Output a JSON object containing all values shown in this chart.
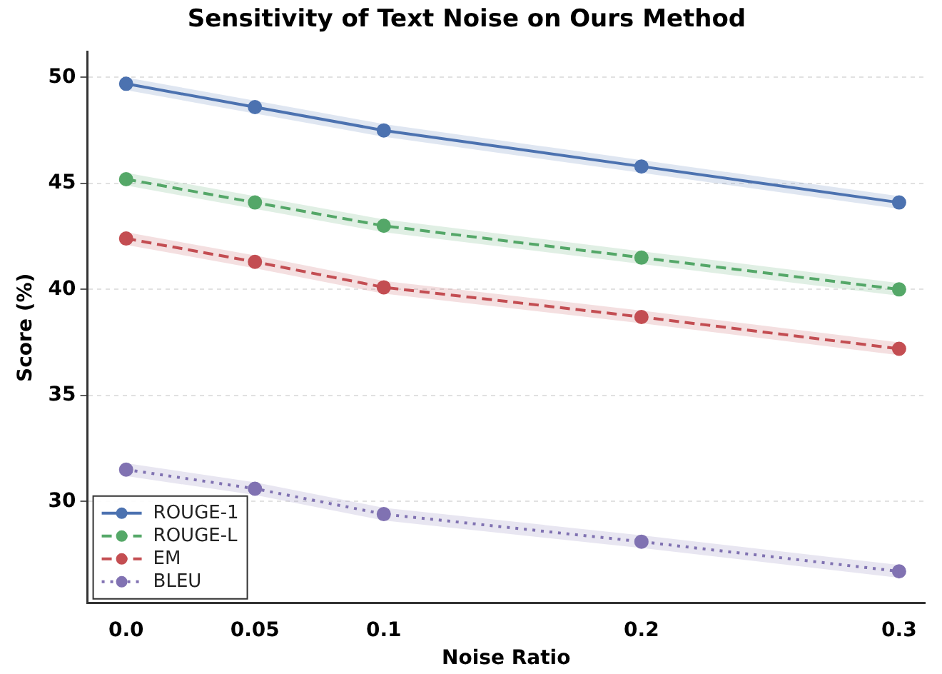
{
  "chart_data": {
    "type": "line",
    "title": "Sensitivity of Text Noise on Ours Method",
    "xlabel": "Noise Ratio",
    "ylabel": "Score (%)",
    "x": [
      0,
      0.05,
      0.1,
      0.2,
      0.3
    ],
    "series": [
      {
        "name": "ROUGE-1",
        "color": "#4c72b0",
        "line_style": "solid",
        "values": [
          49.7,
          48.6,
          47.5,
          45.8,
          44.1
        ],
        "lower": [
          49.4,
          48.3,
          47.2,
          45.5,
          43.8
        ],
        "upper": [
          50.0,
          48.9,
          47.8,
          46.1,
          44.4
        ]
      },
      {
        "name": "ROUGE-L",
        "color": "#55a868",
        "line_style": "dashed",
        "values": [
          45.2,
          44.1,
          43.0,
          41.5,
          40.0
        ],
        "lower": [
          44.9,
          43.8,
          42.7,
          41.2,
          39.7
        ],
        "upper": [
          45.5,
          44.4,
          43.3,
          41.8,
          40.3
        ]
      },
      {
        "name": "EM",
        "color": "#c44e52",
        "line_style": "dashed",
        "values": [
          42.4,
          41.3,
          40.1,
          38.7,
          37.2
        ],
        "lower": [
          42.1,
          41.0,
          39.8,
          38.4,
          36.9
        ],
        "upper": [
          42.7,
          41.6,
          40.4,
          39.0,
          37.5
        ]
      },
      {
        "name": "BLEU",
        "color": "#8172b2",
        "line_style": "dotted",
        "values": [
          31.5,
          30.6,
          29.4,
          28.1,
          26.7
        ],
        "lower": [
          31.2,
          30.3,
          29.1,
          27.8,
          26.4
        ],
        "upper": [
          31.8,
          30.9,
          29.7,
          28.4,
          27.0
        ]
      }
    ],
    "xlim": [
      -0.015,
      0.31
    ],
    "xticks": [
      {
        "value": 0,
        "label": "0.0"
      },
      0.05,
      0.1,
      0.2,
      0.3
    ],
    "ylim": [
      25.2,
      51.2
    ],
    "yticks": [
      30,
      35,
      40,
      45,
      50
    ],
    "grid": "y",
    "legend": "bottom left",
    "marker": "circle"
  }
}
